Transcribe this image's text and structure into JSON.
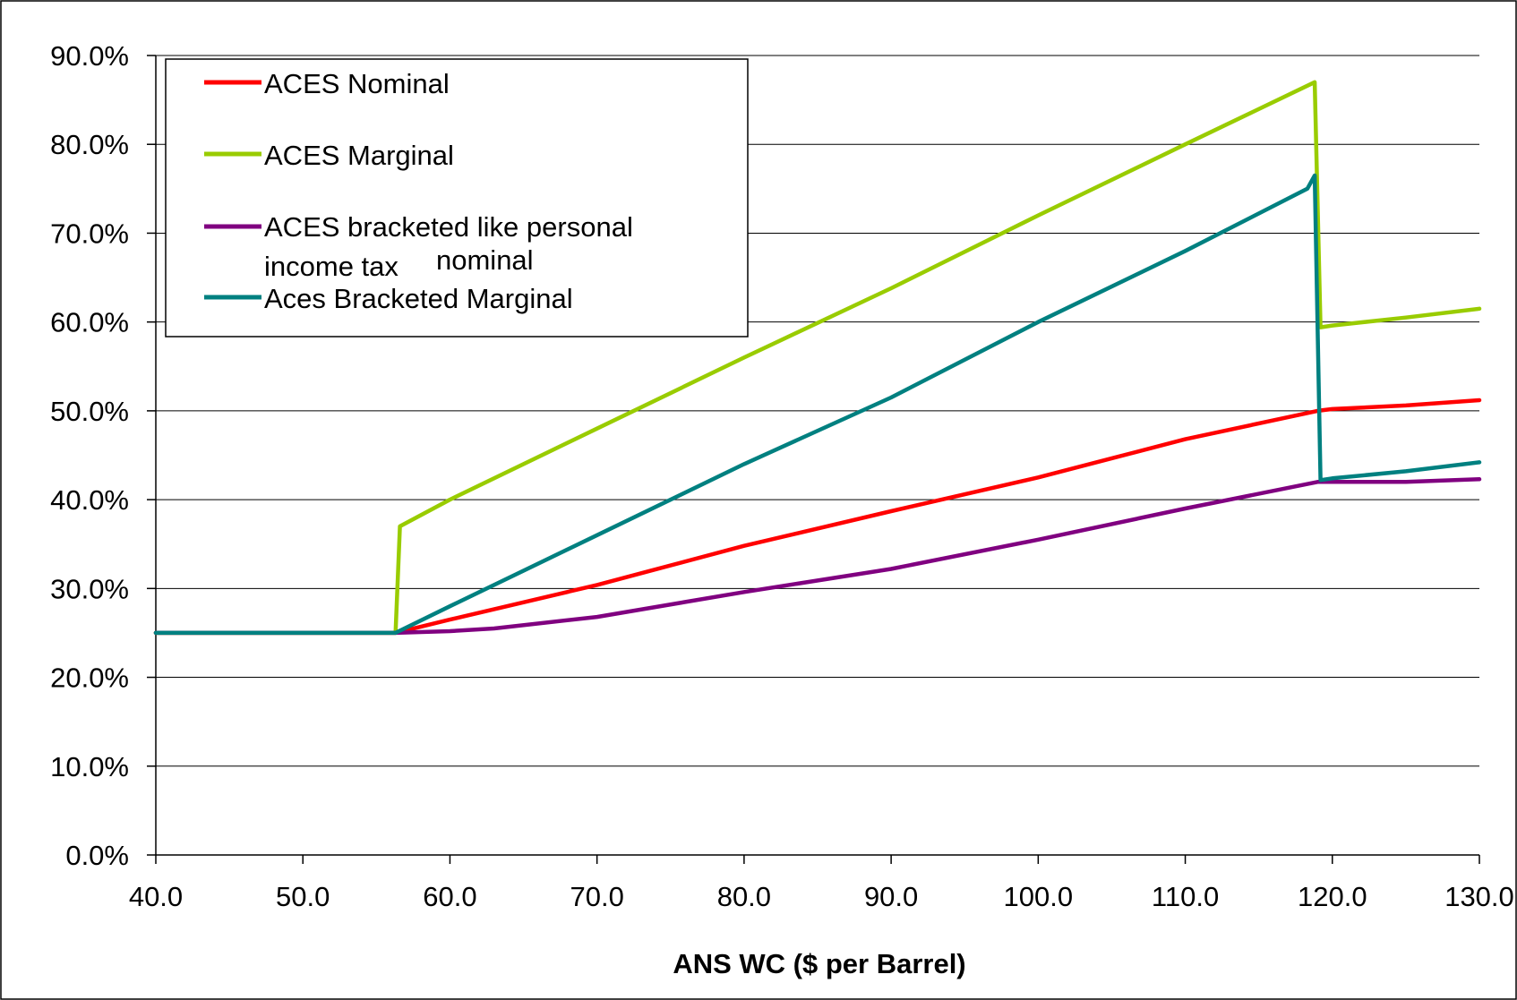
{
  "chart_data": {
    "type": "line",
    "xlabel": "ANS WC ($ per Barrel)",
    "ylabel": "",
    "xlim": [
      40,
      130
    ],
    "ylim": [
      0,
      90
    ],
    "x_ticks": [
      "40.0",
      "50.0",
      "60.0",
      "70.0",
      "80.0",
      "90.0",
      "100.0",
      "110.0",
      "120.0",
      "130.0"
    ],
    "y_ticks": [
      "0.0%",
      "10.0%",
      "20.0%",
      "30.0%",
      "40.0%",
      "50.0%",
      "60.0%",
      "70.0%",
      "80.0%",
      "90.0%"
    ],
    "grid": true,
    "legend_position": "top-left",
    "series": [
      {
        "name": "ACES Nominal",
        "legend_lines": [
          "ACES Nominal"
        ],
        "color": "#ff0000",
        "points": [
          [
            40,
            25
          ],
          [
            56.3,
            25
          ],
          [
            60,
            26.5
          ],
          [
            70,
            30.4
          ],
          [
            80,
            34.8
          ],
          [
            90,
            38.7
          ],
          [
            100,
            42.5
          ],
          [
            110,
            46.8
          ],
          [
            119,
            50
          ],
          [
            120,
            50.2
          ],
          [
            125,
            50.6
          ],
          [
            130,
            51.2
          ]
        ]
      },
      {
        "name": "ACES Marginal",
        "legend_lines": [
          "ACES Marginal"
        ],
        "color": "#99cc00",
        "points": [
          [
            40,
            25
          ],
          [
            56.3,
            25
          ],
          [
            56.6,
            37
          ],
          [
            60,
            40
          ],
          [
            70,
            48
          ],
          [
            80,
            56
          ],
          [
            90,
            63.8
          ],
          [
            100,
            72
          ],
          [
            110,
            80
          ],
          [
            118.8,
            87
          ],
          [
            119.2,
            59.4
          ],
          [
            120,
            59.6
          ],
          [
            125,
            60.5
          ],
          [
            130,
            61.5
          ]
        ]
      },
      {
        "name": "ACES bracketed like personal income tax nominal",
        "legend_lines": [
          "ACES bracketed like personal",
          "income tax",
          "nominal"
        ],
        "color": "#800080",
        "points": [
          [
            40,
            25
          ],
          [
            56.3,
            25
          ],
          [
            60,
            25.2
          ],
          [
            63,
            25.5
          ],
          [
            70,
            26.8
          ],
          [
            80,
            29.6
          ],
          [
            90,
            32.2
          ],
          [
            100,
            35.5
          ],
          [
            110,
            39
          ],
          [
            119,
            42
          ],
          [
            125,
            42
          ],
          [
            130,
            42.3
          ]
        ]
      },
      {
        "name": "Aces Bracketed Marginal",
        "legend_lines": [
          "Aces Bracketed Marginal"
        ],
        "color": "#008080",
        "points": [
          [
            40,
            25
          ],
          [
            56.3,
            25
          ],
          [
            60,
            28
          ],
          [
            70,
            36
          ],
          [
            80,
            44
          ],
          [
            90,
            51.5
          ],
          [
            100,
            60
          ],
          [
            110,
            68
          ],
          [
            118.3,
            75
          ],
          [
            118.8,
            76.5
          ],
          [
            119.2,
            42.2
          ],
          [
            120,
            42.4
          ],
          [
            125,
            43.2
          ],
          [
            130,
            44.2
          ]
        ]
      }
    ]
  }
}
